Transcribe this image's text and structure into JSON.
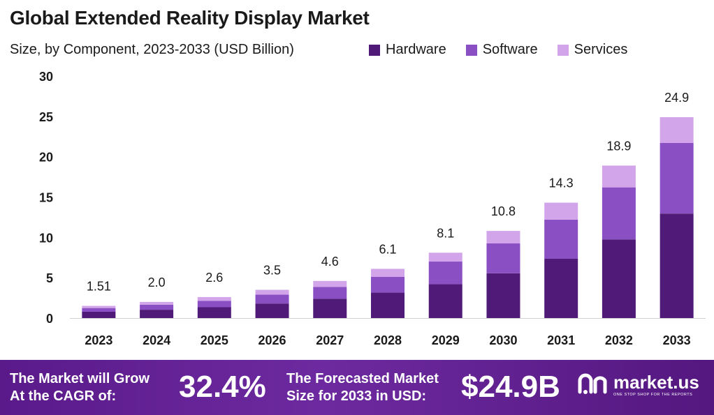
{
  "title": "Global Extended Reality Display Market",
  "subtitle": "Size, by Component, 2023-2033 (USD Billion)",
  "colors": {
    "Hardware": "#4f1a78",
    "Software": "#8b4fc4",
    "Services": "#d2a5ea"
  },
  "chart_data": {
    "type": "bar",
    "stacked": true,
    "categories": [
      "2023",
      "2024",
      "2025",
      "2026",
      "2027",
      "2028",
      "2029",
      "2030",
      "2031",
      "2032",
      "2033"
    ],
    "series": [
      {
        "name": "Hardware",
        "values": [
          0.78,
          1.03,
          1.34,
          1.8,
          2.4,
          3.15,
          4.2,
          5.55,
          7.35,
          9.75,
          12.95
        ]
      },
      {
        "name": "Software",
        "values": [
          0.46,
          0.62,
          0.8,
          1.1,
          1.45,
          1.95,
          2.8,
          3.7,
          4.85,
          6.45,
          8.75
        ]
      },
      {
        "name": "Services",
        "values": [
          0.27,
          0.35,
          0.46,
          0.6,
          0.75,
          1.0,
          1.1,
          1.55,
          2.1,
          2.7,
          3.2
        ]
      }
    ],
    "totals": [
      "1.51",
      "2.0",
      "2.6",
      "3.5",
      "4.6",
      "6.1",
      "8.1",
      "10.8",
      "14.3",
      "18.9",
      "24.9"
    ],
    "yticks": [
      "0",
      "5",
      "10",
      "15",
      "20",
      "25",
      "30"
    ],
    "ylim": [
      0,
      30
    ],
    "grid": false,
    "legend_position": "top-right"
  },
  "banner": {
    "cagr_label_line1": "The Market will Grow",
    "cagr_label_line2": "At the CAGR of:",
    "cagr_value": "32.4%",
    "forecast_label_line1": "The Forecasted Market",
    "forecast_label_line2": "Size for 2033 in USD:",
    "forecast_value": "$24.9B",
    "logo_name": "market.us",
    "logo_tagline": "ONE STOP SHOP FOR THE REPORTS"
  }
}
